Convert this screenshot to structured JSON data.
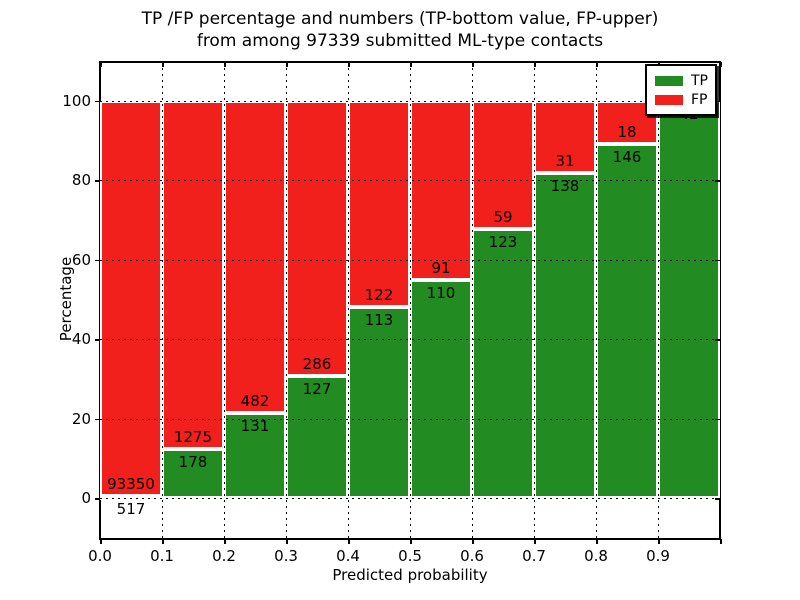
{
  "title": {
    "line1": "TP /FP percentage and numbers (TP-bottom value, FP-upper)",
    "line2": "from among 97339 submitted ML-type contacts"
  },
  "chart_data": {
    "type": "bar",
    "stacked": true,
    "normalized_to_percent": true,
    "title": "TP /FP percentage and numbers (TP-bottom value, FP-upper) from among 97339 submitted ML-type contacts",
    "xlabel": "Predicted probability",
    "ylabel": "Percentage",
    "total_contacts": 97339,
    "x_tick_labels": [
      "0.0",
      "0.1",
      "0.2",
      "0.3",
      "0.4",
      "0.5",
      "0.6",
      "0.7",
      "0.8",
      "0.9"
    ],
    "y_tick_labels": [
      "0",
      "20",
      "40",
      "60",
      "80",
      "100"
    ],
    "y_ticks": [
      0,
      20,
      40,
      60,
      80,
      100
    ],
    "ylim_display": [
      0,
      100
    ],
    "grid": "dotted",
    "legend": {
      "position": "upper right",
      "entries": [
        "TP",
        "FP"
      ]
    },
    "series": [
      {
        "name": "TP",
        "color": "#228B22",
        "position": "bottom"
      },
      {
        "name": "FP",
        "color": "#f2201c",
        "position": "top"
      }
    ],
    "bins": [
      {
        "x0": 0.0,
        "x1": 0.1,
        "tp": 517,
        "fp": 93350
      },
      {
        "x0": 0.1,
        "x1": 0.2,
        "tp": 178,
        "fp": 1275
      },
      {
        "x0": 0.2,
        "x1": 0.3,
        "tp": 131,
        "fp": 482
      },
      {
        "x0": 0.3,
        "x1": 0.4,
        "tp": 127,
        "fp": 286
      },
      {
        "x0": 0.4,
        "x1": 0.5,
        "tp": 113,
        "fp": 122
      },
      {
        "x0": 0.5,
        "x1": 0.6,
        "tp": 110,
        "fp": 91
      },
      {
        "x0": 0.6,
        "x1": 0.7,
        "tp": 123,
        "fp": 59
      },
      {
        "x0": 0.7,
        "x1": 0.8,
        "tp": 138,
        "fp": 31
      },
      {
        "x0": 0.8,
        "x1": 0.9,
        "tp": 146,
        "fp": 18
      },
      {
        "x0": 0.9,
        "x1": 1.0,
        "tp": 42,
        "fp": 0
      }
    ]
  }
}
